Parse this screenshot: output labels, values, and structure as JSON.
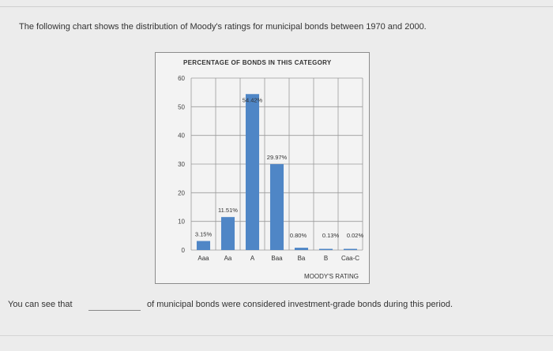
{
  "question": {
    "text": "The following chart shows the distribution of Moody's ratings for municipal bonds between 1970 and 2000."
  },
  "fill_in": {
    "lead": "You can see that",
    "tail": "of municipal bonds were considered investment-grade bonds during this period."
  },
  "chart_data": {
    "type": "bar",
    "title": "PERCENTAGE OF BONDS IN THIS CATEGORY",
    "xlabel": "MOODY'S RATING",
    "ylabel": "",
    "categories": [
      "Aaa",
      "Aa",
      "A",
      "Baa",
      "Ba",
      "B",
      "Caa-C"
    ],
    "values": [
      3.15,
      11.51,
      54.42,
      29.97,
      0.8,
      0.13,
      0.02
    ],
    "value_labels": [
      "3.15%",
      "11.51%",
      "54.42%",
      "29.97%",
      "0.80%",
      "0.13%",
      "0.02%"
    ],
    "ylim": [
      0,
      60
    ],
    "yticks": [
      0,
      10,
      20,
      30,
      40,
      50,
      60
    ],
    "grid": true,
    "bar_color": "#4f86c6"
  }
}
